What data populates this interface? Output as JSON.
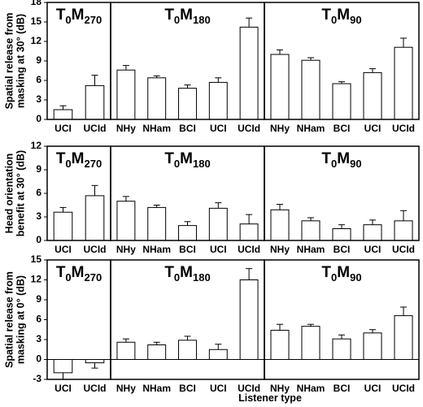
{
  "x_axis_label": "Listener type",
  "panel_titles": [
    {
      "base": "T",
      "sub1": "0",
      "mid": "M",
      "sub2": "270"
    },
    {
      "base": "T",
      "sub1": "0",
      "mid": "M",
      "sub2": "180"
    },
    {
      "base": "T",
      "sub1": "0",
      "mid": "M",
      "sub2": "90"
    }
  ],
  "rows": [
    {
      "ylabel_lines": [
        "Spatial release from",
        "masking at 30° (dB)"
      ]
    },
    {
      "ylabel_lines": [
        "Head orientation",
        "benefit at 30° (dB)"
      ]
    },
    {
      "ylabel_lines": [
        "Spatial release from",
        "masking at 0° (dB)"
      ]
    }
  ],
  "chart_data": [
    {
      "type": "bar",
      "row": 0,
      "col": 0,
      "ylim": [
        0,
        18
      ],
      "yticks": [
        0,
        3,
        6,
        9,
        12,
        15,
        18
      ],
      "categories": [
        "UCI",
        "UCId"
      ],
      "values": [
        1.5,
        5.2
      ],
      "errors": [
        0.6,
        1.6
      ]
    },
    {
      "type": "bar",
      "row": 0,
      "col": 1,
      "ylim": [
        0,
        18
      ],
      "yticks": [
        0,
        3,
        6,
        9,
        12,
        15,
        18
      ],
      "categories": [
        "NHy",
        "NHam",
        "BCI",
        "UCI",
        "UCId"
      ],
      "values": [
        7.6,
        6.4,
        4.8,
        5.7,
        14.2
      ],
      "errors": [
        0.7,
        0.3,
        0.5,
        0.7,
        1.4
      ]
    },
    {
      "type": "bar",
      "row": 0,
      "col": 2,
      "ylim": [
        0,
        18
      ],
      "yticks": [
        0,
        3,
        6,
        9,
        12,
        15,
        18
      ],
      "categories": [
        "NHy",
        "NHam",
        "BCI",
        "UCI",
        "UCId"
      ],
      "values": [
        10.0,
        9.1,
        5.5,
        7.2,
        11.1
      ],
      "errors": [
        0.7,
        0.4,
        0.3,
        0.6,
        1.4
      ]
    },
    {
      "type": "bar",
      "row": 1,
      "col": 0,
      "ylim": [
        0,
        12
      ],
      "yticks": [
        0,
        3,
        6,
        9,
        12
      ],
      "categories": [
        "UCI",
        "UCId"
      ],
      "values": [
        3.6,
        5.7
      ],
      "errors": [
        0.6,
        1.3
      ]
    },
    {
      "type": "bar",
      "row": 1,
      "col": 1,
      "ylim": [
        0,
        12
      ],
      "yticks": [
        0,
        3,
        6,
        9,
        12
      ],
      "categories": [
        "NHy",
        "NHam",
        "BCI",
        "UCI",
        "UCId"
      ],
      "values": [
        5.0,
        4.2,
        1.9,
        4.1,
        2.1
      ],
      "errors": [
        0.6,
        0.3,
        0.5,
        0.7,
        1.2
      ]
    },
    {
      "type": "bar",
      "row": 1,
      "col": 2,
      "ylim": [
        0,
        12
      ],
      "yticks": [
        0,
        3,
        6,
        9,
        12
      ],
      "categories": [
        "NHy",
        "NHam",
        "BCI",
        "UCI",
        "UCId"
      ],
      "values": [
        3.9,
        2.5,
        1.5,
        2.0,
        2.5
      ],
      "errors": [
        0.7,
        0.4,
        0.5,
        0.6,
        1.3
      ]
    },
    {
      "type": "bar",
      "row": 2,
      "col": 0,
      "ylim": [
        -3,
        15
      ],
      "yticks": [
        -3,
        0,
        3,
        6,
        9,
        12,
        15
      ],
      "categories": [
        "UCI",
        "UCId"
      ],
      "values": [
        -2.0,
        -0.5
      ],
      "errors": [
        1.0,
        0.8
      ]
    },
    {
      "type": "bar",
      "row": 2,
      "col": 1,
      "ylim": [
        -3,
        15
      ],
      "yticks": [
        -3,
        0,
        3,
        6,
        9,
        12,
        15
      ],
      "categories": [
        "NHy",
        "NHam",
        "BCI",
        "UCI",
        "UCId"
      ],
      "values": [
        2.6,
        2.2,
        2.9,
        1.5,
        12.0
      ],
      "errors": [
        0.5,
        0.4,
        0.6,
        0.8,
        1.7
      ]
    },
    {
      "type": "bar",
      "row": 2,
      "col": 2,
      "ylim": [
        -3,
        15
      ],
      "yticks": [
        -3,
        0,
        3,
        6,
        9,
        12,
        15
      ],
      "categories": [
        "NHy",
        "NHam",
        "BCI",
        "UCI",
        "UCId"
      ],
      "values": [
        4.4,
        5.0,
        3.1,
        4.0,
        6.6
      ],
      "errors": [
        0.9,
        0.3,
        0.6,
        0.5,
        1.3
      ]
    }
  ]
}
